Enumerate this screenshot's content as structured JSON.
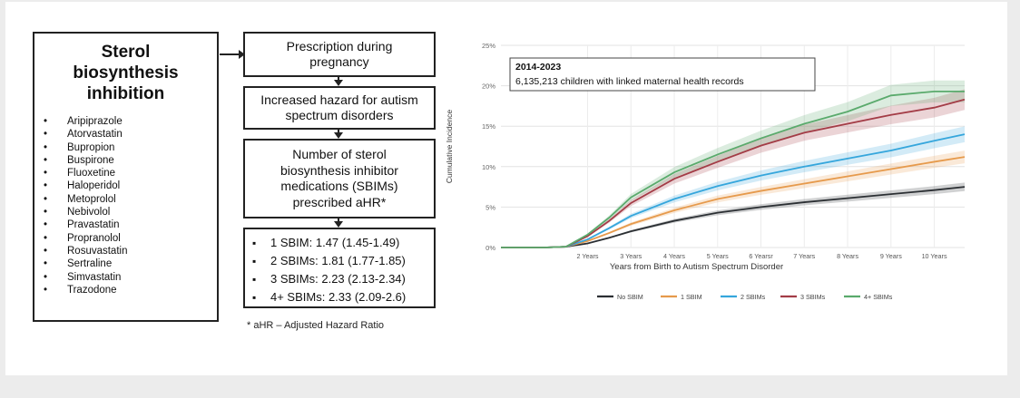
{
  "left_box": {
    "title": "Sterol\nbiosynthesis\ninhibition",
    "drugs": [
      "Aripiprazole",
      "Atorvastatin",
      "Bupropion",
      "Buspirone",
      "Fluoxetine",
      "Haloperidol",
      "Metoprolol",
      "Nebivolol",
      "Pravastatin",
      "Propranolol",
      "Rosuvastatin",
      "Sertraline",
      "Simvastatin",
      "Trazodone"
    ]
  },
  "flow": {
    "step1": "Prescription during\npregnancy",
    "step2": "Increased hazard for autism\nspectrum disorders",
    "step3": "Number of sterol\nbiosynthesis inhibitor\nmedications (SBIMs)\nprescribed aHR*",
    "results": [
      "1 SBIM: 1.47 (1.45-1.49)",
      "2 SBIMs: 1.81 (1.77-1.85)",
      "3 SBIMs: 2.23 (2.13-2.34)",
      "4+ SBIMs: 2.33 (2.09-2.6)"
    ],
    "footnote": "* aHR – Adjusted Hazard Ratio"
  },
  "chart_data": {
    "type": "line",
    "annotation_title": "2014-2023",
    "annotation_text": "6,135,213 children with linked maternal health records",
    "xlabel": "Years from Birth to Autism Spectrum Disorder",
    "ylabel": "Cumulative Incidence",
    "xlim": [
      0,
      10.7
    ],
    "ylim": [
      0,
      25
    ],
    "y_ticks": [
      "0%",
      "5%",
      "10%",
      "15%",
      "20%",
      "25%"
    ],
    "x_ticks": [
      "2 Years",
      "3 Years",
      "4 Years",
      "5 Years",
      "6 Yearsr",
      "7 Years",
      "8 Years",
      "9 Years",
      "10 Years"
    ],
    "x_tick_values": [
      2,
      3,
      4,
      5,
      6,
      7,
      8,
      9,
      10
    ],
    "x": [
      0,
      0.5,
      1,
      1.5,
      2,
      2.5,
      3,
      4,
      5,
      6,
      7,
      8,
      9,
      10,
      10.7
    ],
    "series": [
      {
        "name": "No SBIM",
        "color": "#2b2f33",
        "values": [
          0,
          0,
          0,
          0.1,
          0.5,
          1.2,
          2.0,
          3.3,
          4.3,
          5.0,
          5.6,
          6.1,
          6.6,
          7.1,
          7.5
        ]
      },
      {
        "name": "1 SBIM",
        "color": "#e69a4c",
        "values": [
          0,
          0,
          0,
          0.1,
          0.8,
          1.8,
          2.9,
          4.6,
          6.0,
          7.0,
          7.9,
          8.8,
          9.7,
          10.6,
          11.2
        ]
      },
      {
        "name": "2 SBIMs",
        "color": "#35a6dc",
        "values": [
          0,
          0,
          0,
          0.1,
          1.0,
          2.4,
          3.9,
          6.0,
          7.6,
          8.9,
          10.0,
          11.0,
          12.0,
          13.2,
          14.0
        ]
      },
      {
        "name": "3 SBIMs",
        "color": "#a33c46",
        "values": [
          0,
          0,
          0,
          0.1,
          1.4,
          3.3,
          5.5,
          8.5,
          10.6,
          12.6,
          14.2,
          15.3,
          16.4,
          17.3,
          18.3
        ]
      },
      {
        "name": "4+ SBIMs",
        "color": "#5aaa6c",
        "values": [
          0,
          0,
          0,
          0.1,
          1.6,
          3.7,
          6.2,
          9.3,
          11.5,
          13.5,
          15.3,
          16.8,
          18.8,
          19.3,
          19.3
        ]
      }
    ]
  }
}
